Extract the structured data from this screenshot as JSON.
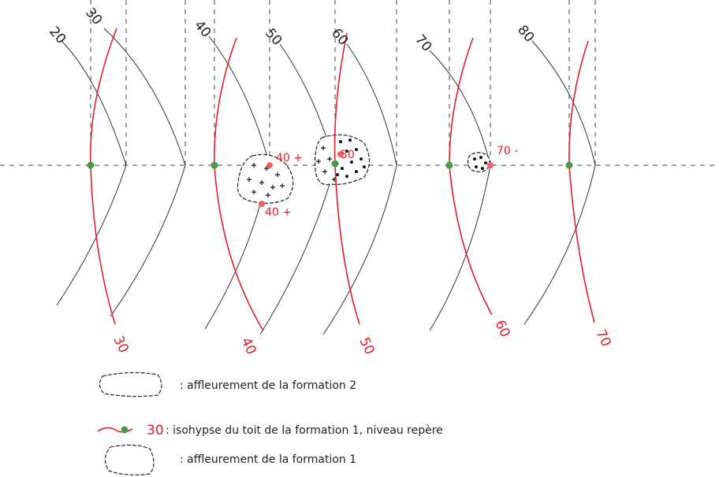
{
  "black_isolines": [
    "20",
    "30",
    "40",
    "50",
    "60",
    "70",
    "80"
  ],
  "red_isohypses": [
    "30",
    "40",
    "50",
    "60",
    "70"
  ],
  "point_labels": [
    "40 +",
    "40 +",
    "50",
    "70 -"
  ],
  "legend": [
    {
      "text": ": affleurement de la formation 2"
    },
    {
      "sample_label": "30",
      "text": ": isohypse du toit de la formation 1, niveau repère"
    },
    {
      "text": ": affleurement de la formation 1"
    }
  ]
}
